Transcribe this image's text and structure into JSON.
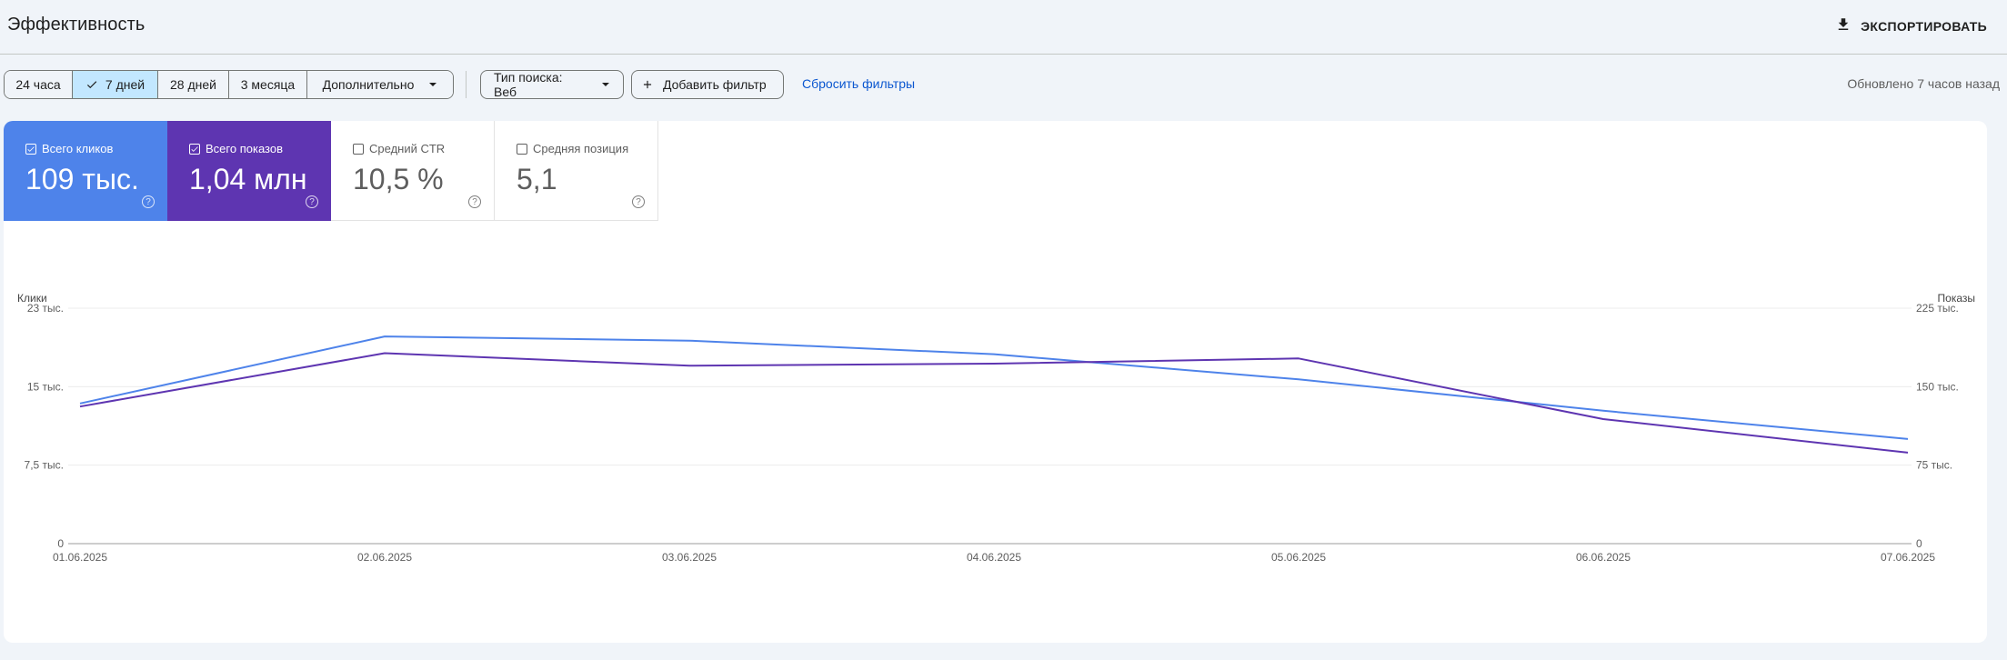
{
  "header": {
    "title": "Эффективность",
    "export_label": "ЭКСПОРТИРОВАТЬ"
  },
  "toolbar": {
    "date_ranges": [
      {
        "label": "24 часа",
        "active": false
      },
      {
        "label": "7 дней",
        "active": true
      },
      {
        "label": "28 дней",
        "active": false
      },
      {
        "label": "3 месяца",
        "active": false
      },
      {
        "label": "Дополнительно",
        "active": false
      }
    ],
    "search_type": "Тип поиска: Веб",
    "add_filter": "Добавить фильтр",
    "reset_filters": "Сбросить фильтры",
    "updated": "Обновлено 7 часов назад"
  },
  "metrics": [
    {
      "label": "Всего кликов",
      "value": "109 тыс.",
      "checked": true,
      "color": "#4e83ea"
    },
    {
      "label": "Всего показов",
      "value": "1,04 млн",
      "checked": true,
      "color": "#5e35b1"
    },
    {
      "label": "Средний CTR",
      "value": "10,5 %",
      "checked": false
    },
    {
      "label": "Средняя позиция",
      "value": "5,1",
      "checked": false
    }
  ],
  "chart_data": {
    "type": "line",
    "x": [
      "01.06.2025",
      "02.06.2025",
      "03.06.2025",
      "04.06.2025",
      "05.06.2025",
      "06.06.2025",
      "07.06.2025"
    ],
    "left_axis_title": "Клики",
    "right_axis_title": "Показы",
    "left_ticks": [
      "0",
      "7,5 тыс.",
      "15 тыс.",
      "23 тыс."
    ],
    "right_ticks": [
      "0",
      "75 тыс.",
      "150 тыс.",
      "225 тыс."
    ],
    "left_ylim": [
      0,
      22500
    ],
    "right_ylim": [
      0,
      225000
    ],
    "grid": true,
    "series": [
      {
        "name": "Клики",
        "axis": "left",
        "color": "#4e83ea",
        "values": [
          13400,
          19800,
          19400,
          18100,
          15700,
          12700,
          10000
        ]
      },
      {
        "name": "Показы",
        "axis": "right",
        "color": "#5e35b1",
        "values": [
          131000,
          182000,
          170000,
          172000,
          177000,
          119000,
          87000
        ]
      }
    ]
  }
}
